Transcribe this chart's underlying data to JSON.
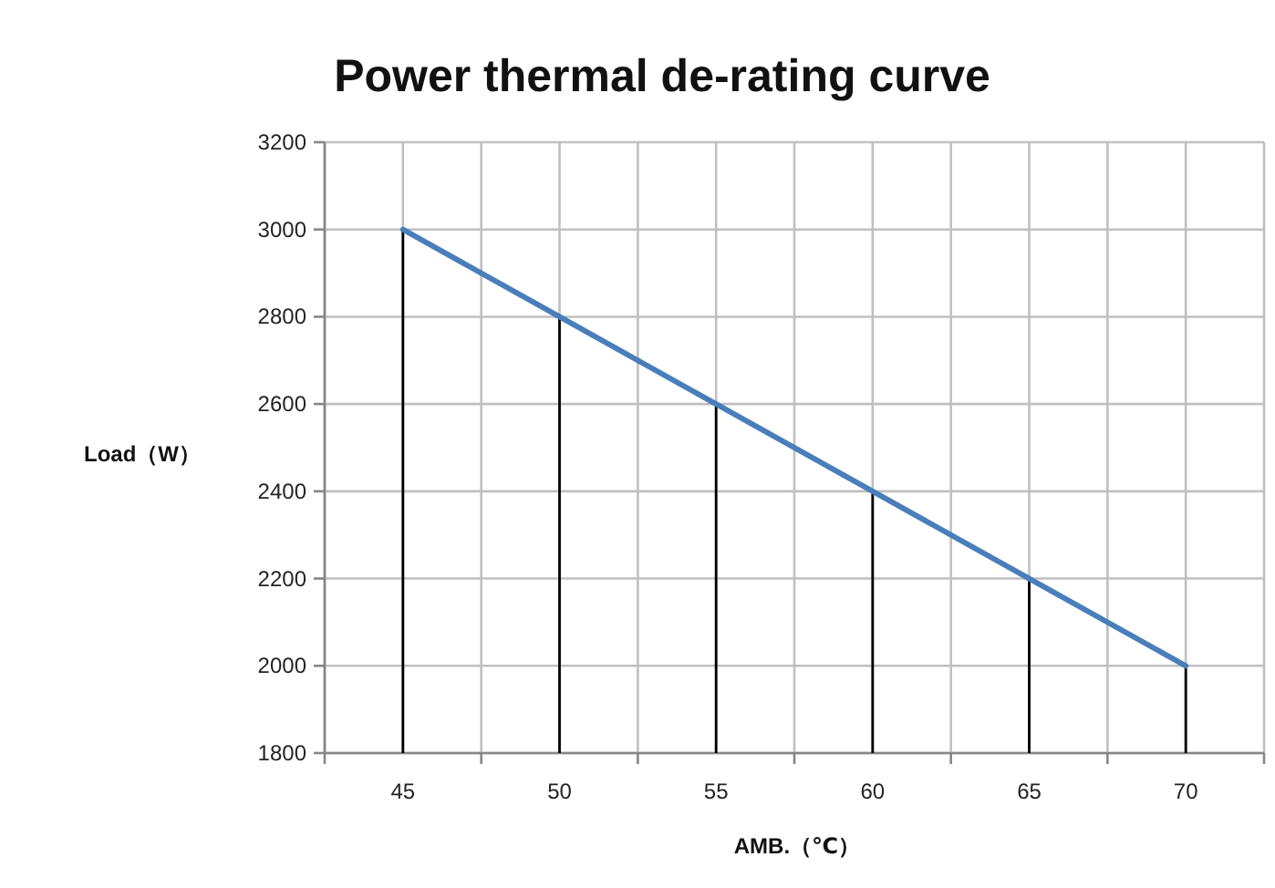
{
  "chart_data": {
    "type": "line",
    "title": "Power thermal de-rating curve",
    "xlabel": "AMB.（℃）",
    "ylabel": "Load（W）",
    "categories": [
      "45",
      "50",
      "55",
      "60",
      "65",
      "70"
    ],
    "series": [
      {
        "color": "#4a7ebb",
        "values": [
          3000,
          2800,
          2600,
          2400,
          2200,
          2000
        ]
      },
      {
        "type": "bar",
        "color": "#000000",
        "values": [
          3000,
          2800,
          2600,
          2400,
          2200,
          2000
        ]
      }
    ],
    "ylim": [
      1800,
      3200
    ],
    "yticks": [
      1800,
      2000,
      2200,
      2400,
      2600,
      2800,
      3000,
      3200
    ],
    "grid": true,
    "marker": "none",
    "line_style": "solid"
  }
}
